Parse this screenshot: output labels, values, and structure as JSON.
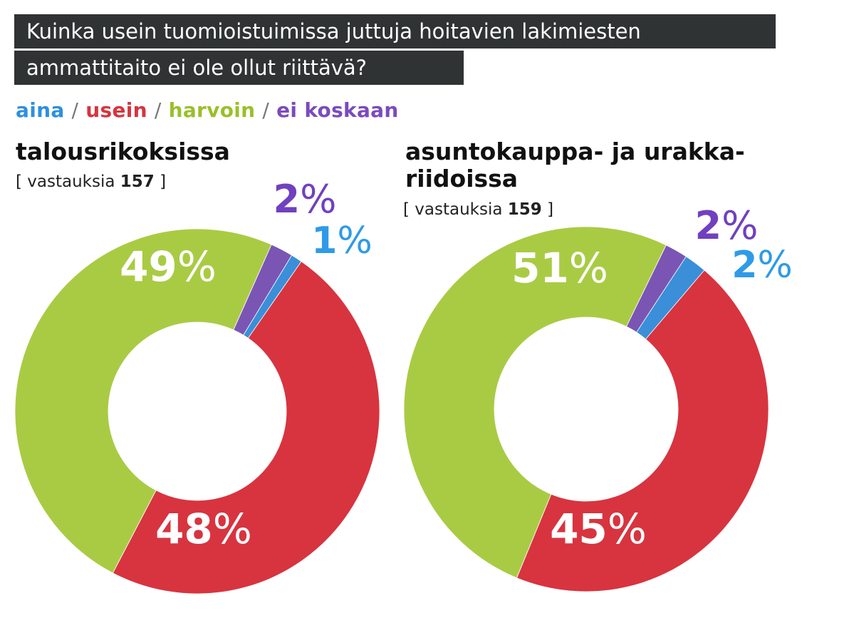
{
  "title": {
    "line1": "Kuinka usein tuomioistuimissa juttuja hoitavien lakimiesten",
    "line2": "ammattitaito ei ole ollut riittävä?"
  },
  "legend": [
    {
      "label": "aina",
      "color": "#2f8fe0"
    },
    {
      "label": "usein",
      "color": "#d7343f"
    },
    {
      "label": "harvoin",
      "color": "#9bbf2a"
    },
    {
      "label": "ei koskaan",
      "color": "#7a4bbd"
    }
  ],
  "legend_separator": "/",
  "responses_prefix": "[ vastauksia",
  "responses_suffix": "]",
  "colors": {
    "aina": "#3a8fd8",
    "usein": "#d7343f",
    "harvoin": "#a9cb44",
    "ei_koskaan": "#7b55b4",
    "aina_label": "#2f9be6",
    "ei_koskaan_label": "#7040c0"
  },
  "chart_data": [
    {
      "type": "pie",
      "title": "talousrikoksissa",
      "responses": "157",
      "categories": [
        "aina",
        "usein",
        "harvoin",
        "ei koskaan"
      ],
      "values": [
        1,
        48,
        49,
        2
      ],
      "labels": [
        "1",
        "48",
        "49",
        "2"
      ],
      "unit": "%"
    },
    {
      "type": "pie",
      "title": "asuntokauppa- ja urakka-riidoissa",
      "title_lines": [
        "asuntokauppa- ja urakka-",
        "riidoissa"
      ],
      "responses": "159",
      "categories": [
        "aina",
        "usein",
        "harvoin",
        "ei koskaan"
      ],
      "values": [
        2,
        45,
        51,
        2
      ],
      "labels": [
        "2",
        "45",
        "51",
        "2"
      ],
      "unit": "%"
    }
  ]
}
